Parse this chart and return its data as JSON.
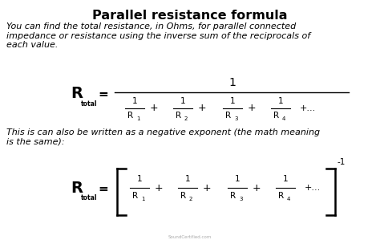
{
  "title": "Parallel resistance formula",
  "title_fontsize": 11.5,
  "title_fontweight": "bold",
  "bg_color": "#ffffff",
  "text_color": "#000000",
  "para1_line1": "You can find the total resistance, in Ohms, for parallel connected",
  "para1_line2": "impedance or resistance using the inverse sum of the reciprocals of",
  "para1_line3": "each value.",
  "para2_line1": "This is can also be written as a negative exponent (the math meaning",
  "para2_line2": "is the same):",
  "watermark": "SoundCertified.com",
  "body_fontsize": 8.0,
  "formula_fontsize": 13
}
